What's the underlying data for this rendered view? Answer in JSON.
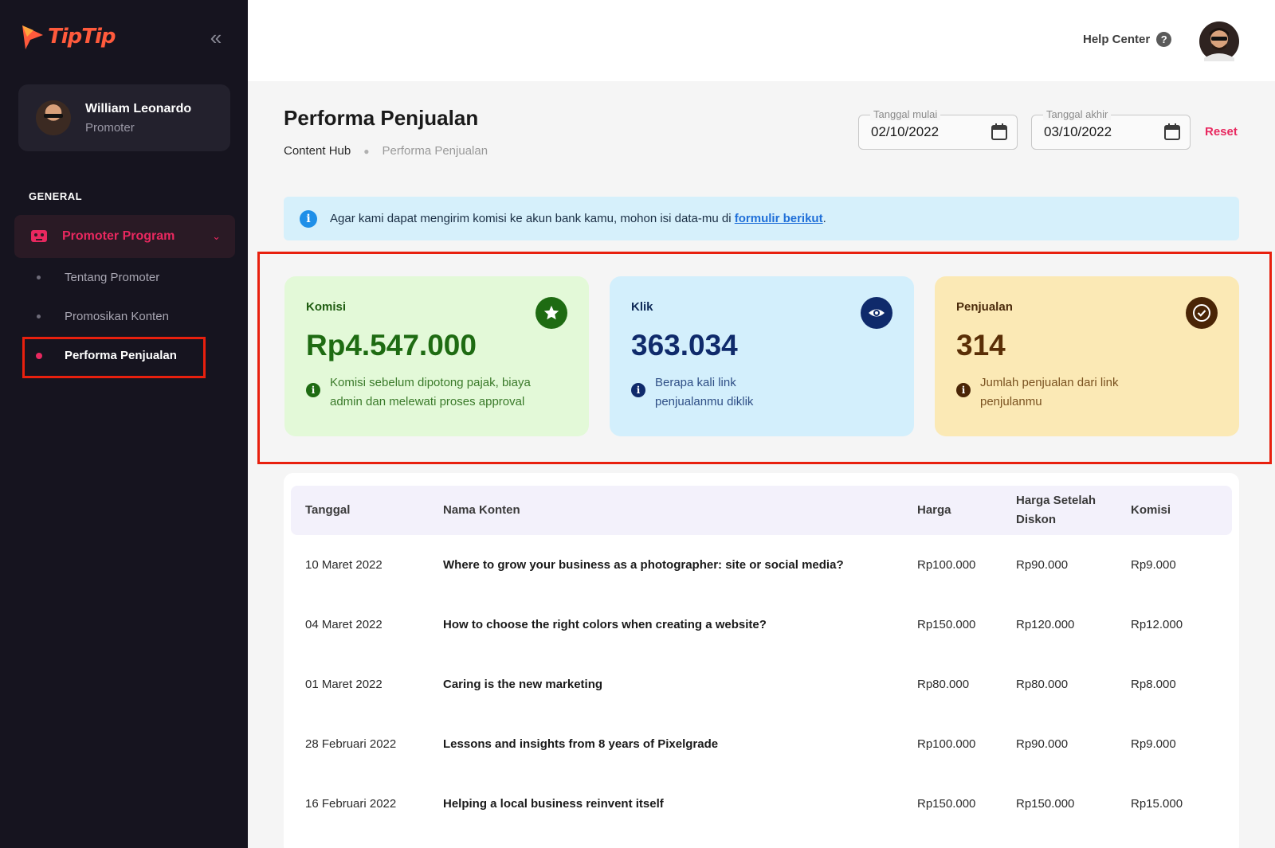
{
  "brand": {
    "name": "TipTip",
    "color": "#ff5a3c"
  },
  "sidebar": {
    "collapse_icon": "double-chevron-left-icon",
    "profile": {
      "name": "William Leonardo",
      "role": "Promoter"
    },
    "section_label": "GENERAL",
    "group": {
      "label": "Promoter Program",
      "icon": "robot-icon"
    },
    "items": [
      {
        "label": "Tentang Promoter",
        "active": false
      },
      {
        "label": "Promosikan Konten",
        "active": false
      },
      {
        "label": "Performa Penjualan",
        "active": true
      }
    ]
  },
  "topbar": {
    "help_label": "Help Center",
    "help_icon": "?"
  },
  "page": {
    "title": "Performa Penjualan",
    "breadcrumb": {
      "parent": "Content Hub",
      "current": "Performa Penjualan"
    }
  },
  "filters": {
    "start": {
      "label": "Tanggal mulai",
      "value": "02/10/2022"
    },
    "end": {
      "label": "Tanggal akhir",
      "value": "03/10/2022"
    },
    "reset_label": "Reset"
  },
  "banner": {
    "text": "Agar kami dapat mengirim komisi ke akun bank kamu, mohon isi data-mu di ",
    "link": "formulir berikut",
    "suffix": "."
  },
  "stats": [
    {
      "label": "Komisi",
      "value": "Rp4.547.000",
      "note": "Komisi sebelum dipotong pajak, biaya admin dan melewati proses approval",
      "icon": "star-icon",
      "color": "#1e6b12"
    },
    {
      "label": "Klik",
      "value": "363.034",
      "note": "Berapa kali link penjualanmu diklik",
      "icon": "eye-icon",
      "color": "#0f2a6b"
    },
    {
      "label": "Penjualan",
      "value": "314",
      "note": "Jumlah penjualan dari link penjulanmu",
      "icon": "check-circle-icon",
      "color": "#4a2506"
    }
  ],
  "table": {
    "headers": [
      "Tanggal",
      "Nama Konten",
      "Harga",
      "Harga Setelah Diskon",
      "Komisi"
    ],
    "rows": [
      [
        "10 Maret 2022",
        "Where to grow your business as a photographer: site or social media?",
        "Rp100.000",
        "Rp90.000",
        "Rp9.000"
      ],
      [
        "04 Maret 2022",
        "How to choose the right colors when creating a website?",
        "Rp150.000",
        "Rp120.000",
        "Rp12.000"
      ],
      [
        "01 Maret 2022",
        "Caring is the new marketing",
        "Rp80.000",
        "Rp80.000",
        "Rp8.000"
      ],
      [
        "28 Februari 2022",
        "Lessons and insights from 8 years of Pixelgrade",
        "Rp100.000",
        "Rp90.000",
        "Rp9.000"
      ],
      [
        "16 Februari 2022",
        "Helping a local business reinvent itself",
        "Rp150.000",
        "Rp150.000",
        "Rp15.000"
      ]
    ]
  }
}
